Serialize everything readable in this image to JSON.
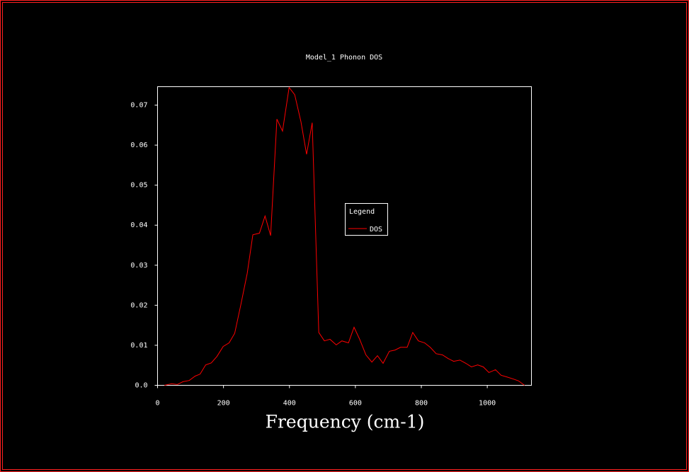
{
  "chart_data": {
    "type": "line",
    "title": "Model_1 Phonon DOS",
    "x_label": "Frequency (cm-1)",
    "x": [
      21,
      43,
      60,
      77,
      96,
      114,
      129,
      146,
      163,
      180,
      199,
      217,
      234,
      253,
      272,
      289,
      309,
      326,
      343,
      362,
      379,
      399,
      416,
      435,
      452,
      469,
      489,
      506,
      523,
      542,
      559,
      579,
      596,
      613,
      632,
      650,
      667,
      684,
      703,
      720,
      737,
      757,
      774,
      791,
      810,
      827,
      845,
      864,
      881,
      898,
      917,
      935,
      952,
      971,
      988,
      1005,
      1025,
      1042,
      1059,
      1078,
      1095,
      1113
    ],
    "series": [
      {
        "name": "DOS",
        "color": "#ff0000",
        "values": [
          0,
          0.0004,
          0.0002,
          0.0009,
          0.0012,
          0.0023,
          0.0028,
          0.0051,
          0.0056,
          0.0072,
          0.0097,
          0.0106,
          0.013,
          0.0203,
          0.028,
          0.0376,
          0.038,
          0.0423,
          0.0374,
          0.0665,
          0.0635,
          0.0744,
          0.0726,
          0.0658,
          0.0577,
          0.0656,
          0.0132,
          0.0111,
          0.0115,
          0.0101,
          0.0111,
          0.0106,
          0.0145,
          0.0115,
          0.0076,
          0.0058,
          0.0074,
          0.0055,
          0.0085,
          0.0088,
          0.0095,
          0.0095,
          0.0132,
          0.0111,
          0.0106,
          0.0095,
          0.0079,
          0.0076,
          0.0067,
          0.006,
          0.0063,
          0.0055,
          0.0046,
          0.0051,
          0.0046,
          0.0032,
          0.0039,
          0.0025,
          0.0021,
          0.0016,
          0.0011,
          0
        ]
      }
    ],
    "legend_title": "Legend",
    "xlim": [
      0,
      1134
    ],
    "xticks": [
      0,
      200,
      400,
      600,
      800,
      1000
    ],
    "ylim": [
      0,
      0.0746
    ],
    "yticks": [
      {
        "value": 0,
        "label": "0.0"
      },
      0.01,
      0.02,
      0.03,
      0.04,
      0.05,
      0.06,
      0.07
    ]
  }
}
